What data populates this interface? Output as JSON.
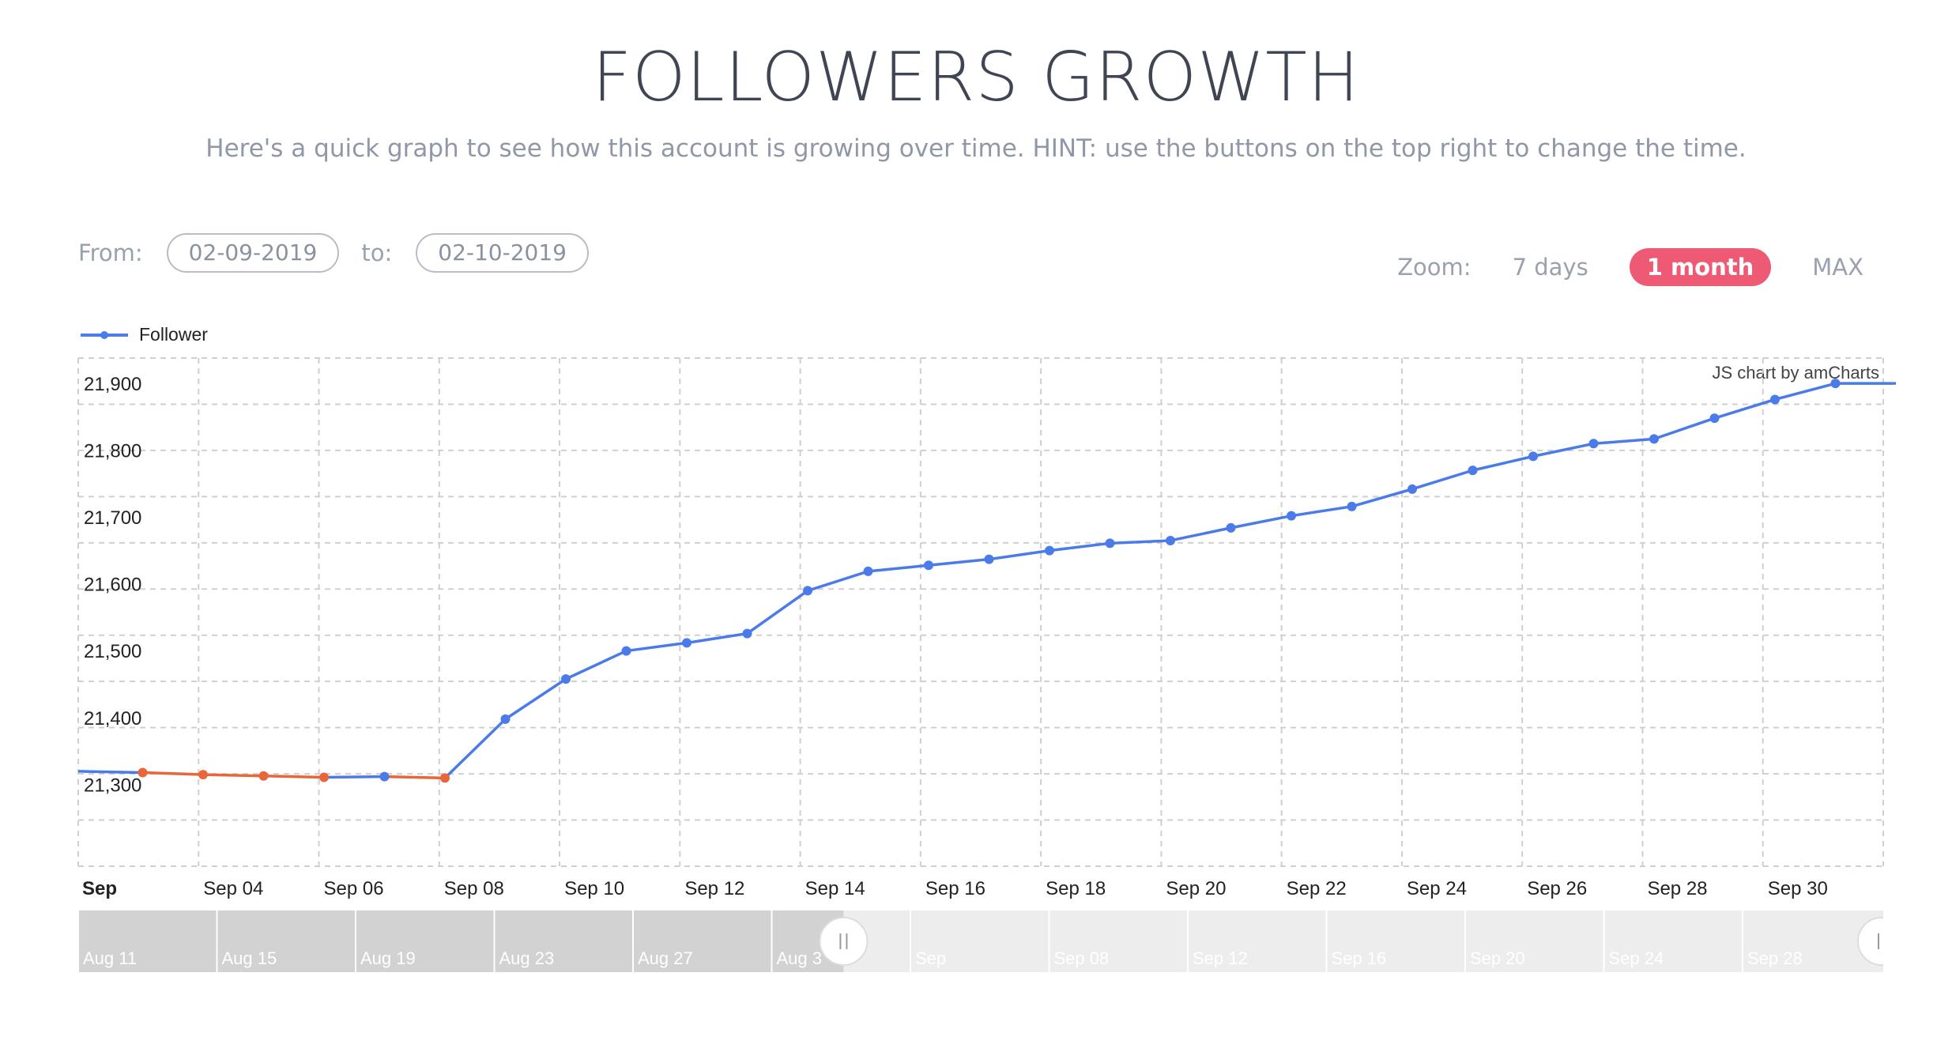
{
  "header": {
    "title": "FOLLOWERS GROWTH",
    "subtitle": "Here's a quick graph to see how this account is growing over time. HINT: use the buttons on the top right to change the time."
  },
  "range": {
    "from_label": "From:",
    "from_value": "02-09-2019",
    "to_label": "to:",
    "to_value": "02-10-2019"
  },
  "zoom": {
    "label": "Zoom:",
    "options": [
      "7 days",
      "1 month",
      "MAX"
    ],
    "active": "1 month"
  },
  "credit": "JS chart by amCharts",
  "colors": {
    "increase": "#4a7be8",
    "decrease": "#e8663a",
    "active_zoom": "#ee5a73"
  },
  "scrollbar": {
    "labels": [
      "Aug 11",
      "Aug 15",
      "Aug 19",
      "Aug 23",
      "Aug 27",
      "Aug 3",
      "Sep",
      "Sep 08",
      "Sep 12",
      "Sep 16",
      "Sep 20",
      "Sep 24",
      "Sep 28"
    ],
    "selection": [
      0.424,
      1.0
    ]
  },
  "chart_data": {
    "type": "line",
    "series": [
      {
        "name": "Follower",
        "x": [
          "Sep 02",
          "Sep 03",
          "Sep 04",
          "Sep 05",
          "Sep 06",
          "Sep 07",
          "Sep 08",
          "Sep 09",
          "Sep 10",
          "Sep 11",
          "Sep 12",
          "Sep 13",
          "Sep 14",
          "Sep 15",
          "Sep 16",
          "Sep 17",
          "Sep 18",
          "Sep 19",
          "Sep 20",
          "Sep 21",
          "Sep 22",
          "Sep 23",
          "Sep 24",
          "Sep 25",
          "Sep 26",
          "Sep 27",
          "Sep 28",
          "Sep 29",
          "Sep 30",
          "Oct 01"
        ],
        "values": [
          21340,
          21337,
          21335,
          21333,
          21334,
          21332,
          21420,
          21480,
          21522,
          21534,
          21548,
          21612,
          21641,
          21650,
          21659,
          21672,
          21683,
          21687,
          21706,
          21724,
          21738,
          21764,
          21792,
          21813,
          21832,
          21839,
          21870,
          21898,
          21922,
          21922
        ]
      }
    ],
    "x_start": "Sep 01",
    "y_ticks": [
      "21,300",
      "21,400",
      "21,500",
      "21,600",
      "21,700",
      "21,800",
      "21,900"
    ],
    "ylim": [
      21200,
      21960
    ],
    "x_ticks": [
      "Sep",
      "Sep 04",
      "Sep 06",
      "Sep 08",
      "Sep 10",
      "Sep 12",
      "Sep 14",
      "Sep 16",
      "Sep 18",
      "Sep 20",
      "Sep 22",
      "Sep 24",
      "Sep 26",
      "Sep 28",
      "Sep 30"
    ],
    "grid": true,
    "legend": "top-left"
  }
}
